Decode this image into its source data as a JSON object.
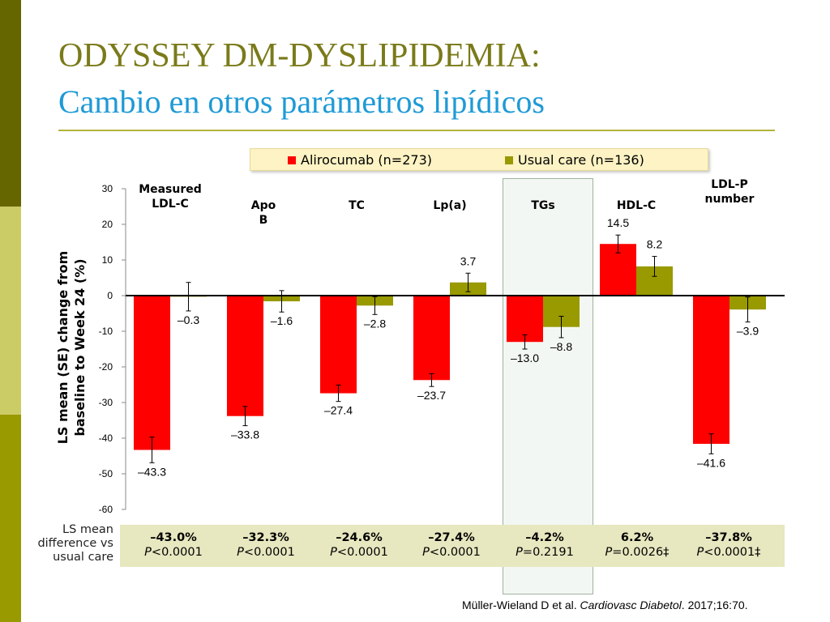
{
  "slide": {
    "title_line1": "ODYSSEY DM-DYSLIPIDEMIA:",
    "title_line2": "Cambio en otros parámetros lipídicos",
    "colors": {
      "title1": "#7a7a1a",
      "title2": "#1e9ad6",
      "sidebar_dark": "#666600",
      "sidebar_light": "#cccc66",
      "sidebar_mid": "#999900"
    }
  },
  "legend": {
    "items": [
      {
        "label": "Alirocumab (n=273)",
        "color": "#ff0000"
      },
      {
        "label": "Usual care (n=136)",
        "color": "#999900"
      }
    ]
  },
  "ls_mean": {
    "label": "LS mean difference vs usual care",
    "cells": [
      {
        "diff": "–43.0%",
        "p_letter": "P",
        "p_rest": "<0.0001"
      },
      {
        "diff": "–32.3%",
        "p_letter": "P",
        "p_rest": "<0.0001"
      },
      {
        "diff": "–24.6%",
        "p_letter": "P",
        "p_rest": "<0.0001"
      },
      {
        "diff": "–27.4%",
        "p_letter": "P",
        "p_rest": "<0.0001"
      },
      {
        "diff": "–4.2%",
        "p_letter": "P",
        "p_rest": "=0.2191"
      },
      {
        "diff": "6.2%",
        "p_letter": "P",
        "p_rest": "=0.0026‡"
      },
      {
        "diff": "–37.8%",
        "p_letter": "P",
        "p_rest": "<0.0001‡"
      }
    ]
  },
  "footnote": {
    "authors": "Müller-Wieland D et al. ",
    "journal": "Cardiovasc Diabetol",
    "rest": ". 2017;16:70."
  },
  "chart_data": {
    "type": "bar",
    "ylabel": "LS mean (SE) change from baseline to Week 24 (%)",
    "ylim": [
      -60,
      30
    ],
    "yticks": [
      30,
      20,
      10,
      0,
      -10,
      -20,
      -30,
      -40,
      -50,
      -60
    ],
    "grid": false,
    "legend_position": "top",
    "highlighted_category": "TGs",
    "categories": [
      "Measured LDL-C",
      "Apo B",
      "TC",
      "Lp(a)",
      "TGs",
      "HDL-C",
      "LDL-P number"
    ],
    "series": [
      {
        "name": "Alirocumab (n=273)",
        "color": "#ff0000",
        "values": [
          -43.3,
          -33.8,
          -27.4,
          -23.7,
          -13.0,
          14.5,
          -41.6
        ],
        "labels": [
          "–43.3",
          "–33.8",
          "–27.4",
          "–23.7",
          "–13.0",
          "14.5",
          "–41.6"
        ],
        "se": [
          3.6,
          2.7,
          2.3,
          1.8,
          2.0,
          2.5,
          2.8
        ]
      },
      {
        "name": "Usual care (n=136)",
        "color": "#999900",
        "values": [
          -0.3,
          -1.6,
          -2.8,
          3.7,
          -8.8,
          8.2,
          -3.9
        ],
        "labels": [
          "–0.3",
          "–1.6",
          "–2.8",
          "3.7",
          "–8.8",
          "8.2",
          "–3.9"
        ],
        "se": [
          4.0,
          3.0,
          2.5,
          2.6,
          3.0,
          2.8,
          3.5
        ]
      }
    ]
  }
}
